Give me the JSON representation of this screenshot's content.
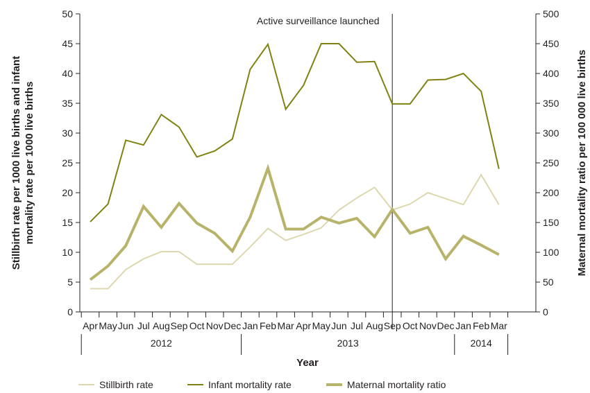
{
  "chart_data": {
    "type": "line",
    "categories": [
      "Apr",
      "May",
      "Jun",
      "Jul",
      "Aug",
      "Sep",
      "Oct",
      "Nov",
      "Dec",
      "Jan",
      "Feb",
      "Mar",
      "Apr",
      "May",
      "Jun",
      "Jul",
      "Aug",
      "Sep",
      "Oct",
      "Nov",
      "Dec",
      "Jan",
      "Feb",
      "Mar"
    ],
    "year_groups": [
      {
        "label": "2012",
        "start": 0,
        "end": 8
      },
      {
        "label": "2013",
        "start": 9,
        "end": 20
      },
      {
        "label": "2014",
        "start": 21,
        "end": 23
      }
    ],
    "series": [
      {
        "name": "Stillbirth rate",
        "axis": "left",
        "color": "#dcd7ad",
        "width": 2,
        "values": [
          3.9,
          3.9,
          7.1,
          8.9,
          10.1,
          10.1,
          8.0,
          8.0,
          8.0,
          10.9,
          14.0,
          12.0,
          13.0,
          14.1,
          17.1,
          19.1,
          20.9,
          17.1,
          18.1,
          20.0,
          19.0,
          18.0,
          23.0,
          18.0
        ]
      },
      {
        "name": "Infant mortality rate",
        "axis": "left",
        "color": "#7f8211",
        "width": 2,
        "values": [
          15.1,
          18.1,
          28.8,
          28.0,
          33.1,
          31.0,
          26.0,
          27.0,
          29.0,
          40.7,
          44.9,
          34.0,
          38.0,
          45.0,
          45.0,
          41.9,
          42.0,
          34.9,
          34.9,
          38.9,
          39.0,
          40.0,
          37.0,
          24.0
        ]
      },
      {
        "name": "Maternal mortality ratio",
        "axis": "right",
        "color": "#b8b36a",
        "width": 4,
        "values": [
          54,
          77,
          111,
          177,
          142,
          182,
          149,
          132,
          102,
          159,
          241,
          139,
          139,
          159,
          149,
          157,
          126,
          172,
          132,
          142,
          89,
          127,
          112,
          96
        ]
      }
    ],
    "y_left": {
      "label": "Stillbirth rate per 1000 live births and infant mortality rate per 1000 live births",
      "ylim": [
        0,
        50
      ],
      "ticks": [
        0,
        5,
        10,
        15,
        20,
        25,
        30,
        35,
        40,
        45,
        50
      ]
    },
    "y_right": {
      "label": "Maternal mortality ratio per 100 000 live births",
      "ylim": [
        0,
        500
      ],
      "ticks": [
        0,
        50,
        100,
        150,
        200,
        250,
        300,
        350,
        400,
        450,
        500
      ]
    },
    "xlabel": "Year",
    "annotation": {
      "text": "Active surveillance launched",
      "at_index": 17
    },
    "legend_position": "bottom",
    "grid": false
  }
}
